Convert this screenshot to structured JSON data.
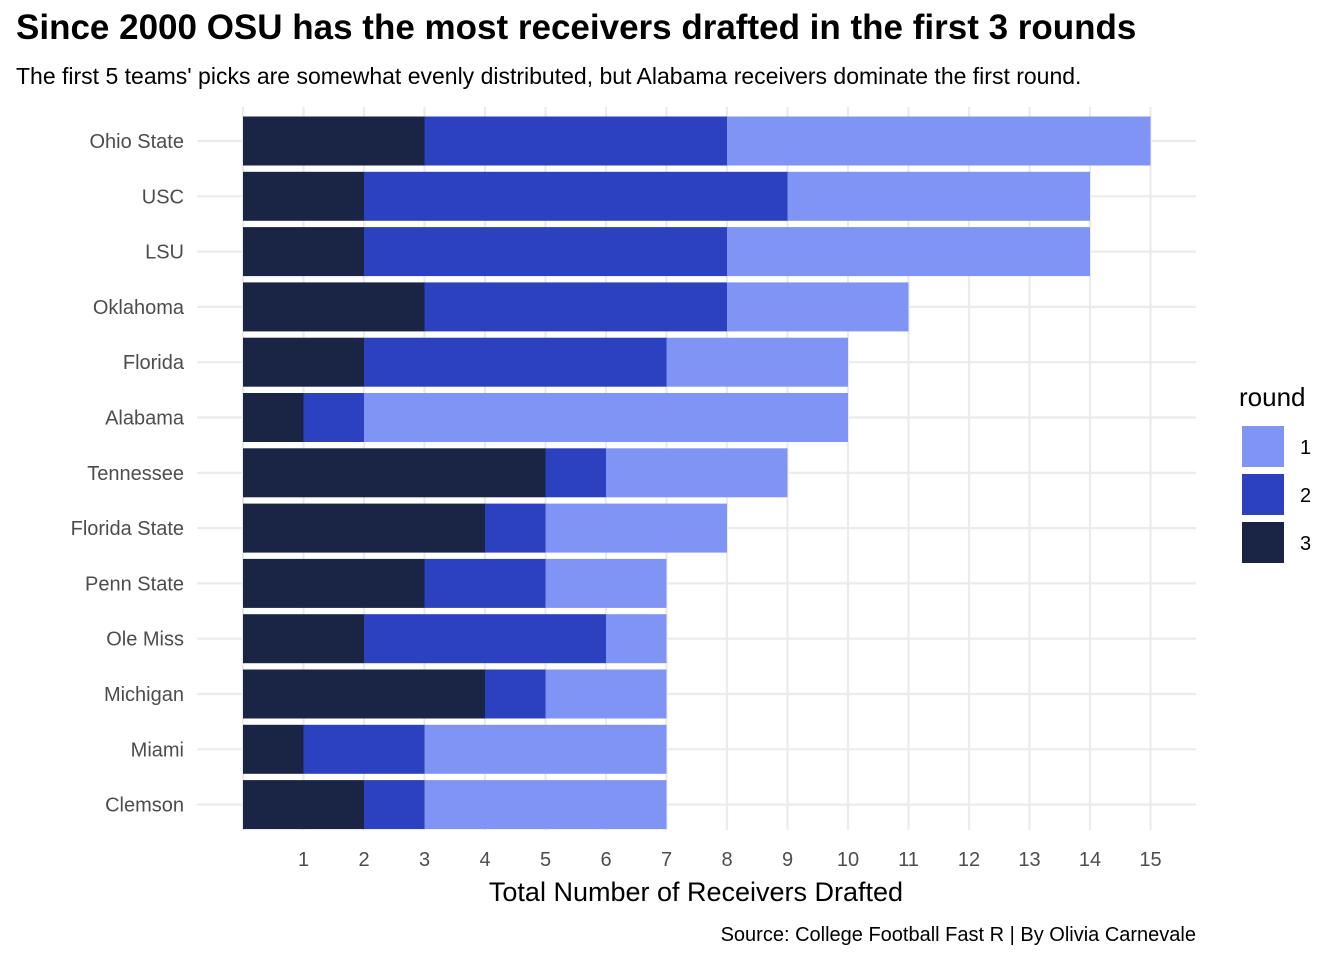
{
  "chart_data": {
    "type": "bar",
    "orientation": "horizontal",
    "stacked": true,
    "title": "Since 2000 OSU has the most receivers drafted in the first 3 rounds",
    "subtitle": "The first 5 teams' picks are somewhat evenly distributed, but Alabama receivers dominate the first round.",
    "xlabel": "Total Number of Receivers Drafted",
    "ylabel": "",
    "caption": "Source: College Football Fast R | By Olivia Carnevale",
    "xlim": [
      0,
      15
    ],
    "xticks": [
      "1",
      "2",
      "3",
      "4",
      "5",
      "6",
      "7",
      "8",
      "9",
      "10",
      "11",
      "12",
      "13",
      "14",
      "15"
    ],
    "grid": true,
    "legend": {
      "title": "round",
      "position": "right",
      "labels": [
        "1",
        "2",
        "3"
      ]
    },
    "categories": [
      "Ohio State",
      "USC",
      "LSU",
      "Oklahoma",
      "Florida",
      "Alabama",
      "Tennessee",
      "Florida State",
      "Penn State",
      "Ole Miss",
      "Michigan",
      "Miami",
      "Clemson"
    ],
    "series": [
      {
        "name": "3",
        "color": "#1a2545",
        "values": [
          3,
          2,
          2,
          3,
          2,
          1,
          5,
          4,
          3,
          2,
          4,
          1,
          2
        ]
      },
      {
        "name": "2",
        "color": "#2b41c0",
        "values": [
          5,
          7,
          6,
          5,
          5,
          1,
          1,
          1,
          2,
          4,
          1,
          2,
          1
        ]
      },
      {
        "name": "1",
        "color": "#7f94f5",
        "values": [
          7,
          5,
          6,
          3,
          3,
          8,
          3,
          3,
          2,
          1,
          2,
          4,
          4
        ]
      }
    ]
  }
}
